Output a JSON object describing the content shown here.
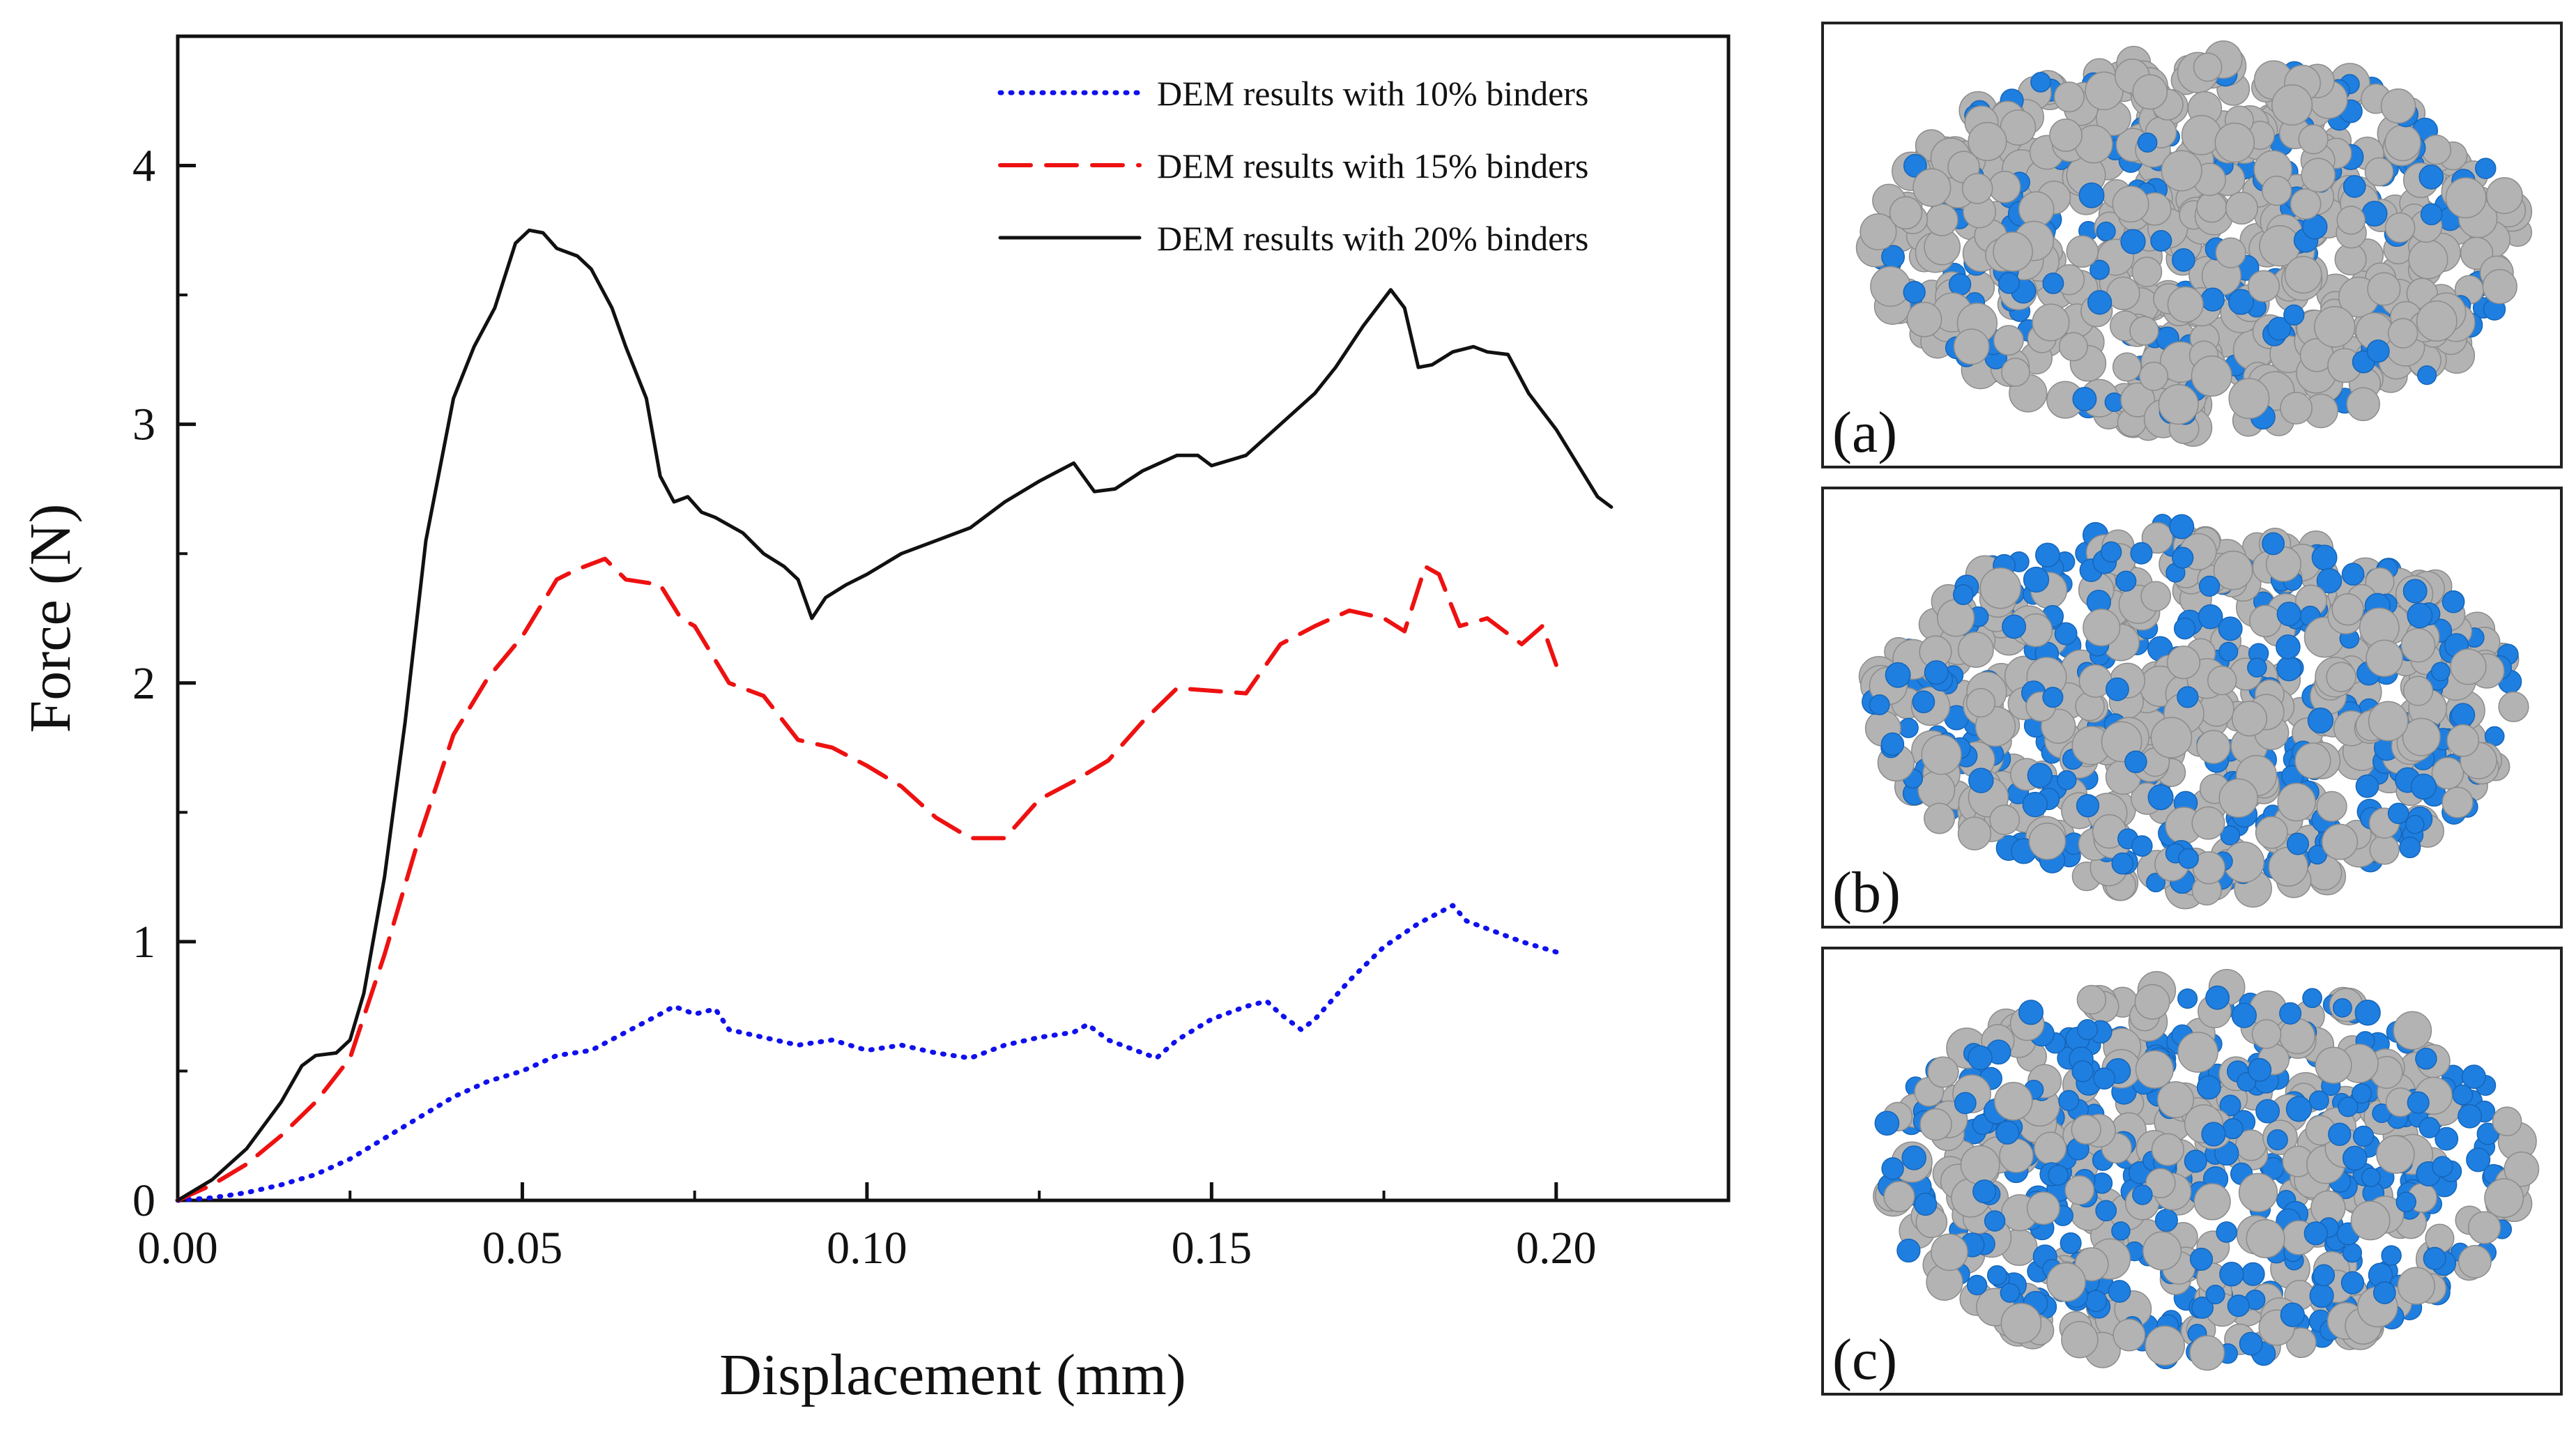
{
  "chart_data": {
    "type": "line",
    "title": "",
    "xlabel": "Displacement (mm)",
    "ylabel": "Force (N)",
    "xlim": [
      0,
      0.225
    ],
    "ylim": [
      0,
      4.5
    ],
    "xticks": [
      "0.00",
      "0.05",
      "0.10",
      "0.15",
      "0.20"
    ],
    "xtick_values": [
      0,
      0.05,
      0.1,
      0.15,
      0.2
    ],
    "yticks": [
      "0",
      "1",
      "2",
      "3",
      "4"
    ],
    "ytick_values": [
      0,
      1,
      2,
      3,
      4
    ],
    "grid": false,
    "legend_position": "top-right",
    "series": [
      {
        "name": "DEM results with 10% binders",
        "color": "#1010ee",
        "style": "dotted",
        "x": [
          0,
          0.005,
          0.01,
          0.015,
          0.02,
          0.025,
          0.03,
          0.035,
          0.04,
          0.045,
          0.05,
          0.055,
          0.06,
          0.065,
          0.07,
          0.072,
          0.075,
          0.078,
          0.08,
          0.085,
          0.09,
          0.095,
          0.1,
          0.105,
          0.11,
          0.115,
          0.12,
          0.125,
          0.13,
          0.132,
          0.135,
          0.14,
          0.142,
          0.145,
          0.15,
          0.155,
          0.158,
          0.16,
          0.163,
          0.165,
          0.17,
          0.175,
          0.18,
          0.185,
          0.187,
          0.19,
          0.195,
          0.2
        ],
        "y": [
          0,
          0.01,
          0.03,
          0.06,
          0.1,
          0.16,
          0.24,
          0.32,
          0.4,
          0.46,
          0.5,
          0.56,
          0.58,
          0.65,
          0.72,
          0.75,
          0.72,
          0.74,
          0.66,
          0.63,
          0.6,
          0.62,
          0.58,
          0.6,
          0.57,
          0.55,
          0.6,
          0.63,
          0.65,
          0.68,
          0.62,
          0.57,
          0.55,
          0.62,
          0.7,
          0.75,
          0.77,
          0.72,
          0.66,
          0.7,
          0.85,
          0.98,
          1.07,
          1.14,
          1.08,
          1.05,
          1.0,
          0.96
        ]
      },
      {
        "name": "DEM results with 15% binders",
        "color": "#ee1111",
        "style": "dashed",
        "x": [
          0,
          0.005,
          0.01,
          0.015,
          0.02,
          0.025,
          0.03,
          0.035,
          0.04,
          0.045,
          0.05,
          0.055,
          0.058,
          0.062,
          0.065,
          0.07,
          0.073,
          0.075,
          0.08,
          0.085,
          0.09,
          0.095,
          0.1,
          0.105,
          0.11,
          0.115,
          0.12,
          0.125,
          0.13,
          0.135,
          0.14,
          0.145,
          0.15,
          0.155,
          0.16,
          0.165,
          0.17,
          0.175,
          0.178,
          0.181,
          0.183,
          0.186,
          0.19,
          0.195,
          0.198,
          0.2
        ],
        "y": [
          0,
          0.06,
          0.14,
          0.25,
          0.38,
          0.55,
          0.95,
          1.4,
          1.8,
          2.02,
          2.18,
          2.4,
          2.44,
          2.48,
          2.4,
          2.38,
          2.25,
          2.22,
          2.0,
          1.95,
          1.78,
          1.75,
          1.68,
          1.6,
          1.48,
          1.4,
          1.4,
          1.55,
          1.62,
          1.7,
          1.85,
          1.98,
          1.97,
          1.96,
          2.15,
          2.22,
          2.28,
          2.25,
          2.2,
          2.45,
          2.42,
          2.22,
          2.25,
          2.15,
          2.22,
          2.07
        ]
      },
      {
        "name": "DEM results with 20% binders",
        "color": "#111111",
        "style": "solid",
        "x": [
          0,
          0.005,
          0.01,
          0.015,
          0.018,
          0.02,
          0.023,
          0.025,
          0.027,
          0.03,
          0.033,
          0.036,
          0.04,
          0.043,
          0.046,
          0.049,
          0.051,
          0.053,
          0.055,
          0.058,
          0.06,
          0.063,
          0.065,
          0.068,
          0.07,
          0.072,
          0.074,
          0.076,
          0.078,
          0.082,
          0.085,
          0.088,
          0.09,
          0.092,
          0.094,
          0.097,
          0.1,
          0.105,
          0.11,
          0.115,
          0.12,
          0.125,
          0.13,
          0.133,
          0.136,
          0.14,
          0.145,
          0.148,
          0.15,
          0.155,
          0.16,
          0.165,
          0.168,
          0.172,
          0.176,
          0.178,
          0.18,
          0.182,
          0.185,
          0.188,
          0.19,
          0.193,
          0.196,
          0.2,
          0.203,
          0.206,
          0.208
        ],
        "y": [
          0,
          0.08,
          0.2,
          0.38,
          0.52,
          0.56,
          0.57,
          0.62,
          0.8,
          1.25,
          1.85,
          2.55,
          3.1,
          3.3,
          3.45,
          3.7,
          3.75,
          3.74,
          3.68,
          3.65,
          3.6,
          3.45,
          3.3,
          3.1,
          2.8,
          2.7,
          2.72,
          2.66,
          2.64,
          2.58,
          2.5,
          2.45,
          2.4,
          2.25,
          2.33,
          2.38,
          2.42,
          2.5,
          2.55,
          2.6,
          2.7,
          2.78,
          2.85,
          2.74,
          2.75,
          2.82,
          2.88,
          2.88,
          2.84,
          2.88,
          3.0,
          3.12,
          3.22,
          3.38,
          3.52,
          3.45,
          3.22,
          3.23,
          3.28,
          3.3,
          3.28,
          3.27,
          3.12,
          2.98,
          2.85,
          2.72,
          2.68
        ]
      }
    ],
    "panels": [
      {
        "label": "(a)",
        "blue_fraction": 0.3
      },
      {
        "label": "(b)",
        "blue_fraction": 0.45
      },
      {
        "label": "(c)",
        "blue_fraction": 0.6
      }
    ],
    "particle_colors": {
      "binder": "#1f7fe0",
      "particle": "#b3b3b3",
      "particle_dark": "#8c8c8c"
    }
  }
}
